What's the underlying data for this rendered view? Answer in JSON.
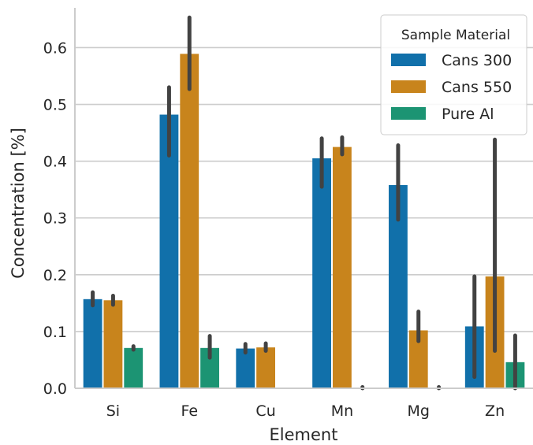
{
  "chart_data": {
    "type": "bar",
    "title": "",
    "xlabel": "Element",
    "ylabel": "Concentration [%]",
    "categories": [
      "Si",
      "Fe",
      "Cu",
      "Mn",
      "Mg",
      "Zn"
    ],
    "ylim": [
      0,
      0.67
    ],
    "yticks": [
      0.0,
      0.1,
      0.2,
      0.3,
      0.4,
      0.5,
      0.6
    ],
    "ytick_labels": [
      "0.0",
      "0.1",
      "0.2",
      "0.3",
      "0.4",
      "0.5",
      "0.6"
    ],
    "grid": true,
    "legend": {
      "title": "Sample Material",
      "placement": "top-right"
    },
    "series": [
      {
        "name": "Cans 300",
        "color": "#1170aa",
        "values": [
          0.157,
          0.482,
          0.07,
          0.405,
          0.358,
          0.109
        ],
        "ci_low": [
          0.146,
          0.41,
          0.063,
          0.355,
          0.297,
          0.02
        ],
        "ci_high": [
          0.169,
          0.53,
          0.078,
          0.44,
          0.428,
          0.197
        ]
      },
      {
        "name": "Cans 550",
        "color": "#c8841c",
        "values": [
          0.155,
          0.589,
          0.072,
          0.425,
          0.102,
          0.197
        ],
        "ci_low": [
          0.147,
          0.527,
          0.066,
          0.412,
          0.083,
          0.066
        ],
        "ci_high": [
          0.163,
          0.653,
          0.079,
          0.442,
          0.135,
          0.438
        ]
      },
      {
        "name": "Pure Al",
        "color": "#1c9473",
        "values": [
          0.071,
          0.071,
          0.0,
          0.0,
          0.0,
          0.046
        ],
        "ci_low": [
          0.068,
          0.054,
          0.0,
          0.0,
          0.0,
          0.0
        ],
        "ci_high": [
          0.074,
          0.092,
          0.0,
          0.002,
          0.002,
          0.093
        ]
      }
    ]
  }
}
